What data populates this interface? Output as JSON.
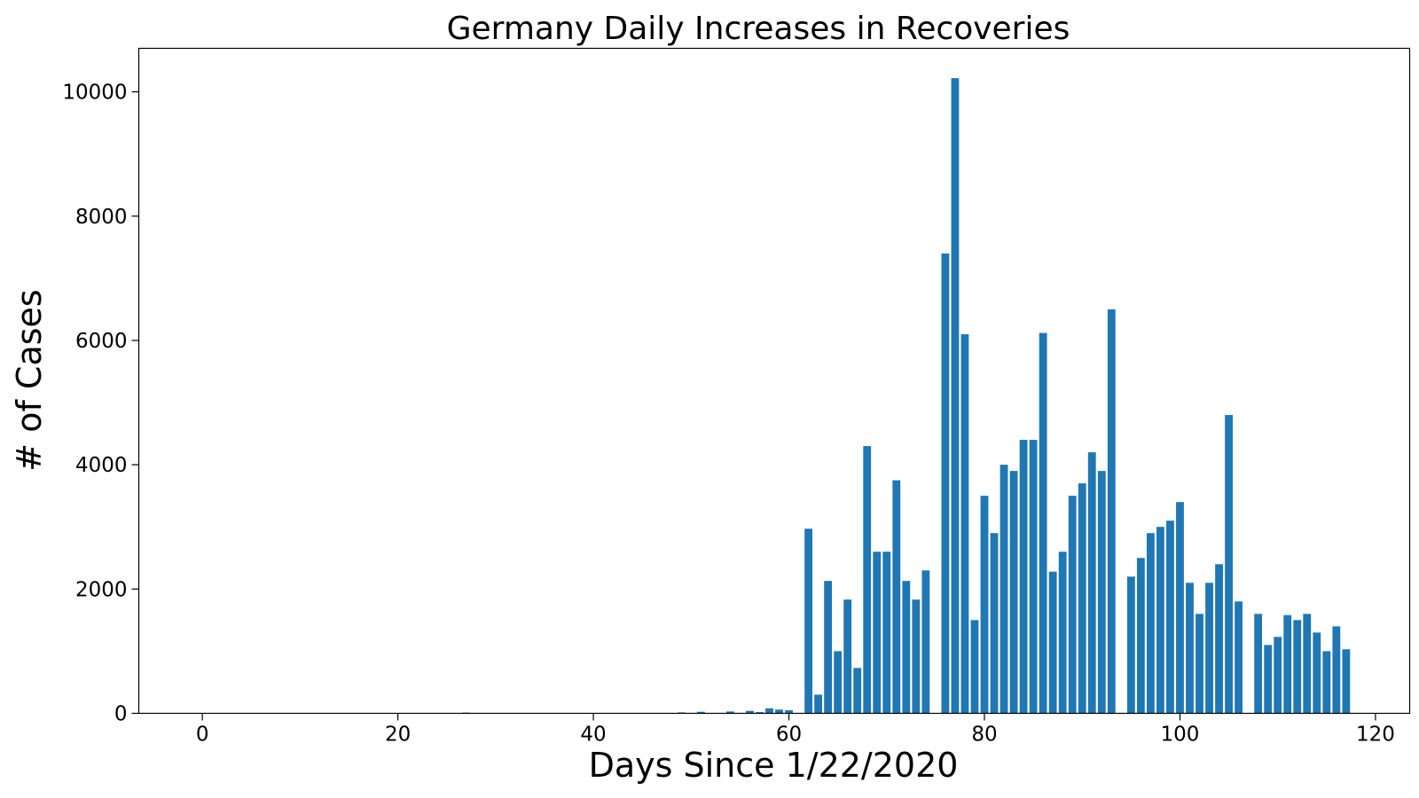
{
  "chart_data": {
    "type": "bar",
    "title": "Germany Daily Increases in Recoveries",
    "xlabel": "Days Since 1/22/2020",
    "ylabel": "# of Cases",
    "xlim": [
      -6.5,
      123.5
    ],
    "ylim": [
      0,
      10700
    ],
    "xticks": [
      0,
      20,
      40,
      60,
      80,
      100,
      120
    ],
    "yticks": [
      0,
      2000,
      4000,
      6000,
      8000,
      10000
    ],
    "grid": false,
    "bar_color": "#1f77b4",
    "x": [
      0,
      1,
      2,
      3,
      4,
      5,
      6,
      7,
      8,
      9,
      10,
      11,
      12,
      13,
      14,
      15,
      16,
      17,
      18,
      19,
      20,
      21,
      22,
      23,
      24,
      25,
      26,
      27,
      28,
      29,
      30,
      31,
      32,
      33,
      34,
      35,
      36,
      37,
      38,
      39,
      40,
      41,
      42,
      43,
      44,
      45,
      46,
      47,
      48,
      49,
      50,
      51,
      52,
      53,
      54,
      55,
      56,
      57,
      58,
      59,
      60,
      61,
      62,
      63,
      64,
      65,
      66,
      67,
      68,
      69,
      70,
      71,
      72,
      73,
      74,
      75,
      76,
      77,
      78,
      79,
      80,
      81,
      82,
      83,
      84,
      85,
      86,
      87,
      88,
      89,
      90,
      91,
      92,
      93,
      94,
      95,
      96,
      97,
      98,
      99,
      100,
      101,
      102,
      103,
      104,
      105,
      106,
      107,
      108,
      109,
      110,
      111,
      112,
      113,
      114,
      115,
      116,
      117
    ],
    "values": [
      0,
      0,
      0,
      0,
      0,
      0,
      0,
      0,
      0,
      0,
      0,
      0,
      0,
      0,
      0,
      0,
      0,
      0,
      0,
      0,
      0,
      0,
      0,
      0,
      0,
      0,
      0,
      12,
      0,
      0,
      0,
      0,
      0,
      0,
      0,
      0,
      0,
      0,
      0,
      0,
      0,
      0,
      0,
      0,
      0,
      0,
      0,
      0,
      0,
      15,
      0,
      25,
      0,
      0,
      30,
      0,
      40,
      20,
      80,
      60,
      50,
      0,
      2970,
      300,
      2130,
      1000,
      1830,
      730,
      4300,
      2600,
      2600,
      3750,
      2130,
      1830,
      2300,
      0,
      7400,
      10220,
      6100,
      1500,
      3500,
      2900,
      4000,
      3900,
      4400,
      4400,
      6120,
      2280,
      2600,
      3500,
      3700,
      4200,
      3900,
      6500,
      0,
      2200,
      2500,
      2900,
      3000,
      3100,
      3400,
      2100,
      1600,
      2100,
      2400,
      4800,
      1800,
      0,
      1600,
      1100,
      1230,
      1580,
      1500,
      1600,
      1300,
      1000,
      1400,
      1030
    ]
  }
}
